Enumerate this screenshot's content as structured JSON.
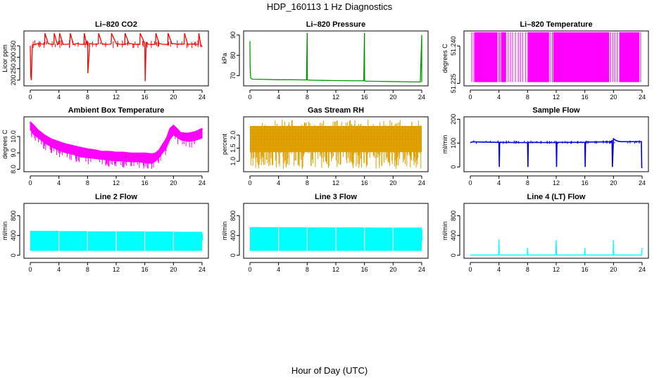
{
  "figure": {
    "title": "HDP_160113  1 Hz Diagnostics",
    "xlabel": "Hour of Day (UTC)"
  },
  "chart_data": [
    {
      "id": "p1",
      "type": "line",
      "title": "Li–820 CO2",
      "ylabel": "Licor ppm",
      "color": "#ff0000",
      "xlim": [
        0,
        24
      ],
      "ylim": [
        175,
        415
      ],
      "xticks": [
        "0",
        "4",
        "8",
        "12",
        "16",
        "20",
        "24"
      ],
      "yticks": [
        "200",
        "250",
        "300",
        "350"
      ],
      "series": [
        {
          "x": [
            0,
            0.08,
            0.15,
            0.3,
            0.7,
            1,
            1.5,
            2,
            2.05,
            2.5,
            3,
            3.3,
            3.35,
            3.8,
            4,
            4.1,
            4.6,
            5,
            5.5,
            5.6,
            6,
            6.5,
            7,
            7.5,
            7.55,
            7.9,
            8,
            8.05,
            8.3,
            9,
            9.5,
            9.55,
            10,
            10.5,
            11,
            11.3,
            11.35,
            12,
            12.5,
            13,
            13.2,
            13.25,
            13.8,
            14,
            14.5,
            15,
            15.3,
            15.35,
            16,
            16.05,
            16.2,
            16.5,
            17,
            17.5,
            17.55,
            18,
            18.5,
            19,
            19.2,
            19.25,
            19.8,
            20,
            20.5,
            21,
            21.5,
            21.55,
            22,
            22.5,
            23,
            23.5,
            23.55,
            23.8,
            24
          ],
          "y": [
            350,
            215,
            200,
            355,
            355,
            360,
            358,
            357,
            405,
            360,
            356,
            357,
            405,
            355,
            360,
            405,
            356,
            357,
            358,
            405,
            356,
            360,
            357,
            356,
            405,
            355,
            370,
            230,
            360,
            357,
            358,
            405,
            360,
            356,
            357,
            358,
            405,
            360,
            357,
            356,
            356,
            405,
            358,
            360,
            357,
            356,
            356,
            405,
            360,
            195,
            365,
            357,
            356,
            357,
            405,
            360,
            357,
            356,
            356,
            405,
            358,
            360,
            357,
            358,
            357,
            405,
            356,
            358,
            357,
            356,
            405,
            358,
            345
          ]
        }
      ]
    },
    {
      "id": "p2",
      "type": "line",
      "title": "Li–820 Pressure",
      "ylabel": "kPa",
      "color": "#00aa00",
      "xlim": [
        0,
        24
      ],
      "ylim": [
        65,
        92
      ],
      "xticks": [
        "0",
        "4",
        "8",
        "12",
        "16",
        "20",
        "24"
      ],
      "yticks": [
        "70",
        "80",
        "90"
      ],
      "series": [
        {
          "x": [
            0,
            0.02,
            0.1,
            0.2,
            0.4,
            2,
            4,
            6,
            7.9,
            8,
            8.02,
            8.1,
            8.3,
            10,
            12,
            14,
            15.9,
            16,
            16.02,
            16.1,
            16.3,
            18,
            20,
            22,
            23.8,
            24,
            24
          ],
          "y": [
            87,
            75,
            69,
            68.5,
            68.3,
            68.2,
            68,
            68,
            67.9,
            91,
            68,
            67.8,
            67.8,
            67.7,
            67.6,
            67.5,
            67.5,
            91,
            67.5,
            67.3,
            67.3,
            67.2,
            67.1,
            67,
            66.9,
            90,
            66.9
          ]
        }
      ]
    },
    {
      "id": "p3",
      "type": "line",
      "title": "Li–820 Temperature",
      "ylabel": "degrees C",
      "color": "#ff00ff",
      "xlim": [
        0,
        24
      ],
      "ylim": [
        51.224,
        51.246
      ],
      "xticks": [
        "0",
        "4",
        "8",
        "12",
        "16",
        "20",
        "24"
      ],
      "yticks": [
        "51.225",
        "51.240"
      ],
      "levels": [
        51.2255,
        51.2455
      ],
      "dense_regions": [
        [
          0.6,
          3.8
        ],
        [
          4.3,
          5.0
        ],
        [
          8.0,
          11.0
        ],
        [
          11.6,
          19.4
        ],
        [
          20.8,
          23.6
        ]
      ],
      "sparse_switches": [
        0.2,
        0.5,
        4.0,
        4.15,
        5.3,
        5.6,
        5.9,
        6.3,
        6.7,
        7.0,
        7.3,
        7.7,
        11.2,
        11.45,
        19.6,
        19.9,
        20.2,
        20.5,
        23.8
      ]
    },
    {
      "id": "p4",
      "type": "line",
      "title": "Ambient Box Temperature",
      "ylabel": "degrees C",
      "color": "#ff00ff",
      "xlim": [
        0,
        24
      ],
      "ylim": [
        7.85,
        11.2
      ],
      "xticks": [
        "0",
        "4",
        "8",
        "12",
        "16",
        "20",
        "24"
      ],
      "yticks": [
        "8.0",
        "9.0",
        "10.0"
      ],
      "series": [
        {
          "name": "upper",
          "x": [
            0,
            0.5,
            1,
            2,
            3,
            4,
            5,
            6,
            7,
            8,
            9,
            10,
            11,
            12,
            13,
            14,
            15,
            16,
            17,
            17.5,
            18,
            19,
            19.5,
            20,
            20.5,
            21,
            22,
            23,
            24
          ],
          "y": [
            10.9,
            10.7,
            10.45,
            10.1,
            9.85,
            9.7,
            9.55,
            9.45,
            9.35,
            9.25,
            9.2,
            9.1,
            9.1,
            9.05,
            9.05,
            9.0,
            9.0,
            9.0,
            8.95,
            9.0,
            9.2,
            9.9,
            10.5,
            10.7,
            10.5,
            10.25,
            10.2,
            10.3,
            10.5
          ]
        },
        {
          "name": "lower",
          "x": [
            0,
            0.5,
            1,
            2,
            3,
            4,
            5,
            6,
            7,
            8,
            9,
            10,
            11,
            12,
            13,
            14,
            15,
            16,
            17,
            17.5,
            18,
            19,
            19.5,
            20,
            20.5,
            21,
            22,
            23,
            24
          ],
          "y": [
            10.4,
            10.1,
            9.95,
            9.6,
            9.35,
            9.15,
            9.0,
            8.9,
            8.75,
            8.7,
            8.65,
            8.6,
            8.55,
            8.5,
            8.5,
            8.45,
            8.45,
            8.4,
            8.35,
            8.5,
            8.7,
            9.3,
            9.8,
            10.1,
            9.95,
            9.8,
            9.7,
            9.75,
            9.9
          ]
        }
      ]
    },
    {
      "id": "p5",
      "type": "line",
      "title": "Gas Stream RH",
      "ylabel": "percent",
      "color": "#e0a000",
      "xlim": [
        0,
        24
      ],
      "ylim": [
        0.6,
        2.7
      ],
      "xticks": [
        "0",
        "4",
        "8",
        "12",
        "16",
        "20",
        "24"
      ],
      "yticks": [
        "1.0",
        "1.5",
        "2.0"
      ],
      "band_upper": 2.35,
      "band_lower": 1.35,
      "floor": 0.7
    },
    {
      "id": "p6",
      "type": "line",
      "title": "Sample Flow",
      "ylabel": "ml/min",
      "color": "#0000dd",
      "xlim": [
        0,
        24
      ],
      "ylim": [
        -20,
        210
      ],
      "xticks": [
        "0",
        "4",
        "8",
        "12",
        "16",
        "20",
        "24"
      ],
      "yticks": [
        "0",
        "100",
        "200"
      ],
      "series": [
        {
          "x": [
            0,
            0.3,
            3.9,
            4.0,
            4.05,
            4.1,
            7.9,
            8.0,
            8.05,
            8.1,
            11.9,
            12.0,
            12.05,
            12.1,
            15.9,
            16.0,
            16.05,
            16.1,
            19.5,
            19.8,
            19.85,
            20.0,
            20.3,
            20.6,
            21,
            23.9,
            23.95,
            24
          ],
          "y": [
            102,
            105,
            103,
            102,
            0,
            103,
            102,
            102,
            0,
            103,
            102,
            103,
            0,
            103,
            103,
            103,
            0,
            104,
            105,
            110,
            0,
            118,
            112,
            108,
            106,
            106,
            0,
            -5
          ]
        }
      ]
    },
    {
      "id": "p7",
      "type": "line",
      "title": "Line 2 Flow",
      "ylabel": "ml/min",
      "color": "#00ffff",
      "xlim": [
        0,
        24
      ],
      "ylim": [
        -60,
        1050
      ],
      "xticks": [
        "0",
        "4",
        "8",
        "12",
        "16",
        "20",
        "24"
      ],
      "yticks": [
        "0",
        "400",
        "800"
      ],
      "band": [
        [
          0,
          24
        ],
        [
          90,
          500
        ]
      ],
      "upper_steps": {
        "x": [
          0,
          4,
          8,
          12,
          16,
          20,
          24
        ],
        "y": [
          495,
          490,
          485,
          485,
          480,
          475,
          470
        ]
      },
      "gaps": [
        4,
        8,
        12,
        16,
        20
      ]
    },
    {
      "id": "p8",
      "type": "line",
      "title": "Line 3 Flow",
      "ylabel": "ml/min",
      "color": "#00ffff",
      "xlim": [
        0,
        24
      ],
      "ylim": [
        -60,
        1050
      ],
      "xticks": [
        "0",
        "4",
        "8",
        "12",
        "16",
        "20",
        "24"
      ],
      "yticks": [
        "0",
        "400",
        "800"
      ],
      "band": [
        [
          0,
          24
        ],
        [
          90,
          570
        ]
      ],
      "upper_steps": {
        "x": [
          0,
          4,
          8,
          12,
          16,
          20,
          24
        ],
        "y": [
          570,
          568,
          565,
          565,
          560,
          560,
          555
        ]
      },
      "gaps": [
        4,
        8,
        12,
        16,
        20
      ]
    },
    {
      "id": "p9",
      "type": "line",
      "title": "Line 4 (LT) Flow",
      "ylabel": "ml/min",
      "color": "#00ffff",
      "xlim": [
        0,
        24
      ],
      "ylim": [
        -60,
        1050
      ],
      "xticks": [
        "0",
        "4",
        "8",
        "12",
        "16",
        "20",
        "24"
      ],
      "yticks": [
        "0",
        "400",
        "800"
      ],
      "series": [
        {
          "x": [
            0,
            3.95,
            4.0,
            4.05,
            7.95,
            8.0,
            8.05,
            11.95,
            12.0,
            12.05,
            15.95,
            16.0,
            16.05,
            19.95,
            20.0,
            20.05,
            23.95,
            24.0
          ],
          "y": [
            5,
            5,
            320,
            5,
            5,
            150,
            5,
            5,
            310,
            5,
            5,
            150,
            5,
            5,
            310,
            5,
            5,
            150
          ]
        }
      ]
    }
  ]
}
